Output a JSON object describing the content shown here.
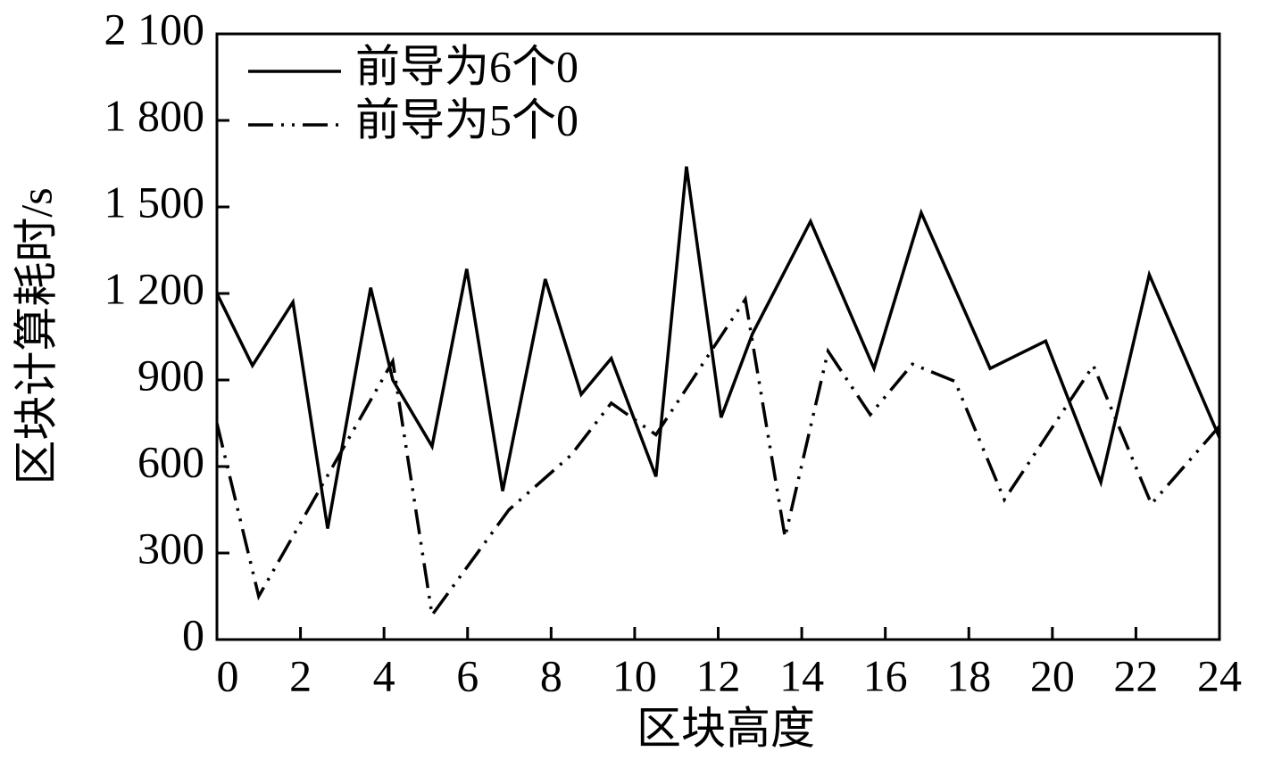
{
  "chart_data": {
    "type": "line",
    "x_label": "区块高度",
    "y_label": "区块计算耗时/s",
    "xlim": [
      0,
      24
    ],
    "xticks": [
      0,
      2,
      4,
      6,
      8,
      10,
      12,
      14,
      16,
      18,
      20,
      22,
      24
    ],
    "ylim": [
      0,
      2100
    ],
    "yticks": [
      0,
      300,
      600,
      900,
      {
        "value": 1200,
        "label": "1 200"
      },
      {
        "value": 1500,
        "label": "1 500"
      },
      {
        "value": 1800,
        "label": "1 800"
      },
      {
        "value": 2100,
        "label": "2 100"
      }
    ],
    "legend": "upper left",
    "series": [
      {
        "name": "前导为6个0",
        "color": "#000000",
        "style": "solid",
        "x": [
          0,
          0.85,
          1.82,
          2.65,
          3.68,
          4.21,
          5.15,
          5.98,
          6.84,
          7.86,
          8.72,
          9.44,
          10.51,
          11.24,
          12.07,
          12.82,
          14.21,
          15.73,
          16.86,
          18.51,
          19.84,
          21.16,
          22.32,
          24
        ],
        "values": [
          1200,
          950,
          1170,
          385,
          1220,
          900,
          670,
          1285,
          515,
          1250,
          850,
          975,
          565,
          1640,
          770,
          1060,
          1450,
          940,
          1480,
          940,
          1035,
          545,
          1265,
          700
        ]
      },
      {
        "name": "前导为5个0",
        "color": "#000000",
        "style": "dashdotdot",
        "x": [
          0,
          1.0,
          4.21,
          5.15,
          6.99,
          8.48,
          9.44,
          10.51,
          12.65,
          13.6,
          14.63,
          15.64,
          16.65,
          17.67,
          18.85,
          20.98,
          22.37,
          24
        ],
        "values": [
          750,
          150,
          965,
          85,
          450,
          640,
          820,
          710,
          1180,
          355,
          1000,
          780,
          955,
          895,
          485,
          950,
          470,
          740
        ]
      }
    ]
  }
}
